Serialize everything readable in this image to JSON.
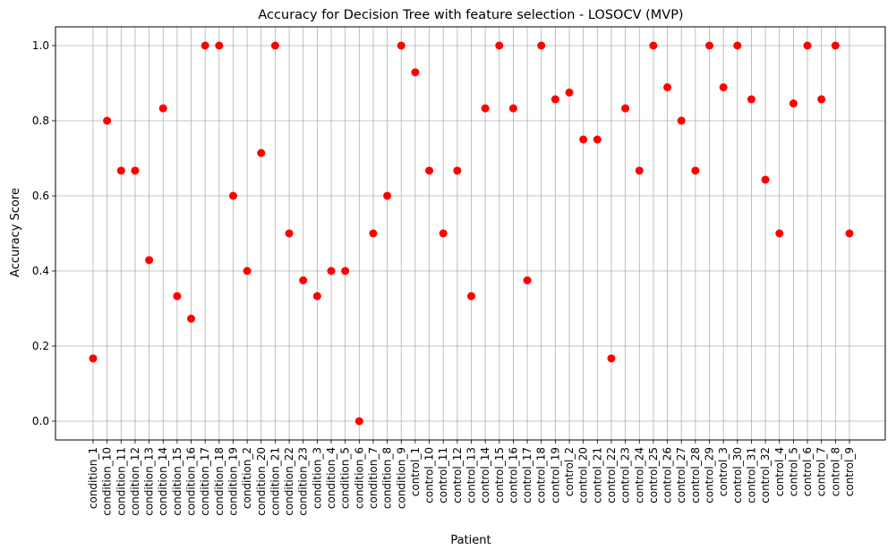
{
  "chart_data": {
    "type": "scatter",
    "title": "Accuracy for Decision Tree with feature selection - LOSOCV (MVP)",
    "xlabel": "Patient",
    "ylabel": "Accuracy Score",
    "ylim": [
      -0.05,
      1.05
    ],
    "yticks": [
      "0.0",
      "0.2",
      "0.4",
      "0.6",
      "0.8",
      "1.0"
    ],
    "grid": true,
    "marker_color": "#ff0000",
    "categories": [
      "condition_1",
      "condition_10",
      "condition_11",
      "condition_12",
      "condition_13",
      "condition_14",
      "condition_15",
      "condition_16",
      "condition_17",
      "condition_18",
      "condition_19",
      "condition_2",
      "condition_20",
      "condition_21",
      "condition_22",
      "condition_23",
      "condition_3",
      "condition_4",
      "condition_5",
      "condition_6",
      "condition_7",
      "condition_8",
      "condition_9",
      "control_1",
      "control_10",
      "control_11",
      "control_12",
      "control_13",
      "control_14",
      "control_15",
      "control_16",
      "control_17",
      "control_18",
      "control_19",
      "control_2",
      "control_20",
      "control_21",
      "control_22",
      "control_23",
      "control_24",
      "control_25",
      "control_26",
      "control_27",
      "control_28",
      "control_29",
      "control_3",
      "control_30",
      "control_31",
      "control_32",
      "control_4",
      "control_5",
      "control_6",
      "control_7",
      "control_8",
      "control_9"
    ],
    "values": [
      0.167,
      0.8,
      0.667,
      0.667,
      0.429,
      0.833,
      0.333,
      0.273,
      1.0,
      1.0,
      0.6,
      0.4,
      0.714,
      1.0,
      0.5,
      0.375,
      0.333,
      0.4,
      0.4,
      0.0,
      0.5,
      0.6,
      1.0,
      0.929,
      0.667,
      0.5,
      0.667,
      0.333,
      0.833,
      1.0,
      0.833,
      0.375,
      1.0,
      0.857,
      0.875,
      0.75,
      0.75,
      0.167,
      0.833,
      0.667,
      1.0,
      0.889,
      0.8,
      0.667,
      1.0,
      0.889,
      1.0,
      0.857,
      0.643,
      0.5,
      0.846,
      1.0,
      0.857,
      1.0,
      0.5
    ]
  }
}
